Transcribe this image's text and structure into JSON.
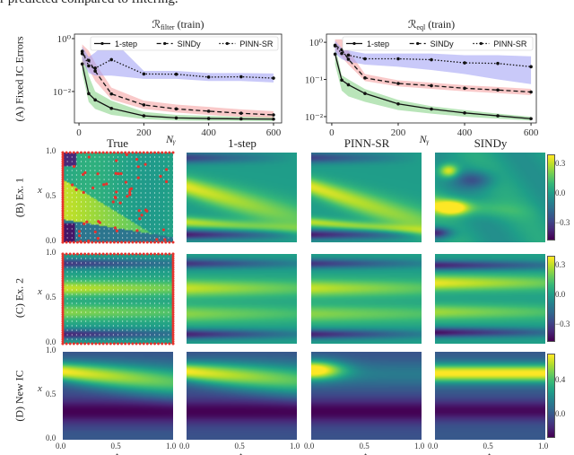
{
  "caption": "r predicted compared to filtering.",
  "row_labels": {
    "A": "(A) Fixed IC Errors",
    "B": "(B) Ex. 1",
    "C": "(C) Ex. 2",
    "D": "(D) New IC"
  },
  "column_titles": [
    "True",
    "1-step",
    "PINN-SR",
    "SINDy"
  ],
  "heatmap_axes": {
    "xlabel": "t",
    "ylabel": "x",
    "xticks": [
      "0.0",
      "0.5",
      "1.0"
    ],
    "yticks": [
      "0.0",
      "0.5",
      "1.0"
    ]
  },
  "colorbars": [
    {
      "row": "B",
      "ticks": [
        "0.3",
        "0.0",
        "−0.3"
      ],
      "range": [
        -0.45,
        0.4
      ]
    },
    {
      "row": "C",
      "ticks": [
        "0.3",
        "0.0",
        "−0.3"
      ],
      "range": [
        -0.45,
        0.4
      ]
    },
    {
      "row": "D",
      "ticks": [
        "0.4",
        "0.0"
      ],
      "range": [
        -0.25,
        0.72
      ]
    }
  ],
  "colors": {
    "one_step_band": "#7fcf7f",
    "sindy_band": "#f49c9c",
    "pinn_band": "#9c9cf4",
    "sensor_points": "#e8322c"
  },
  "chart_data": [
    {
      "type": "line",
      "title": "ℛfilter (train)",
      "title_main": "ℛ",
      "title_sub": "filter",
      "title_tail": " (train)",
      "xlabel": "Nᵧ",
      "ylabel": "(A) Fixed IC Errors",
      "yscale": "log",
      "xlim": [
        -14,
        625
      ],
      "ylog_lim": [
        -3.19,
        0.17
      ],
      "xticks": [
        "0",
        "200",
        "400",
        "600"
      ],
      "yticks": [
        "10⁰",
        "10⁻²"
      ],
      "ytick_values": [
        1,
        0.01
      ],
      "legend": "top-right",
      "x": [
        10,
        30,
        50,
        100,
        200,
        300,
        400,
        500,
        600
      ],
      "series": [
        {
          "name": "1-step",
          "style": "solid",
          "values": [
            0.11,
            0.0083,
            0.0048,
            0.0023,
            0.0012,
            0.001,
            0.00095,
            0.00092,
            0.0009
          ],
          "lower": [
            0.05,
            0.004,
            0.0022,
            0.0013,
            0.0009,
            0.0008,
            0.00078,
            0.00077,
            0.00076
          ],
          "upper": [
            0.5,
            0.04,
            0.01,
            0.0045,
            0.0017,
            0.0013,
            0.0012,
            0.0011,
            0.0011
          ]
        },
        {
          "name": "SINDy",
          "style": "dashed",
          "values": [
            0.27,
            0.15,
            0.059,
            0.0081,
            0.0031,
            0.0022,
            0.0018,
            0.0015,
            0.0013
          ],
          "lower": [
            0.12,
            0.07,
            0.025,
            0.005,
            0.0022,
            0.0016,
            0.0013,
            0.0011,
            0.001
          ],
          "upper": [
            0.6,
            0.35,
            0.12,
            0.014,
            0.0045,
            0.0032,
            0.0026,
            0.0021,
            0.0018
          ]
        },
        {
          "name": "PINN-SR",
          "style": "dotted",
          "values": [
            0.33,
            0.093,
            0.076,
            0.16,
            0.046,
            0.045,
            0.035,
            0.036,
            0.032
          ],
          "lower": [
            0.15,
            0.05,
            0.04,
            0.04,
            0.03,
            0.03,
            0.025,
            0.025,
            0.022
          ],
          "upper": [
            0.5,
            0.2,
            0.3,
            1.0,
            0.06,
            0.06,
            0.05,
            0.05,
            0.048
          ]
        }
      ]
    },
    {
      "type": "line",
      "title": "ℛeql (train)",
      "title_main": "ℛ",
      "title_sub": "eql",
      "title_tail": " (train)",
      "xlabel": "Nᵧ",
      "ylabel": "",
      "yscale": "log",
      "xlim": [
        -16,
        616
      ],
      "ylog_lim": [
        -2.17,
        0.22
      ],
      "xticks": [
        "0",
        "200",
        "400",
        "600"
      ],
      "yticks": [
        "10⁰",
        "10⁻¹",
        "10⁻²"
      ],
      "ytick_values": [
        1,
        0.1,
        0.01
      ],
      "legend": "top-right",
      "x": [
        10,
        30,
        50,
        100,
        200,
        300,
        400,
        500,
        600
      ],
      "series": [
        {
          "name": "1-step",
          "style": "solid",
          "values": [
            0.48,
            0.096,
            0.072,
            0.042,
            0.022,
            0.016,
            0.0126,
            0.0105,
            0.0088
          ],
          "lower": [
            0.25,
            0.05,
            0.035,
            0.025,
            0.015,
            0.012,
            0.01,
            0.0088,
            0.0078
          ],
          "upper": [
            0.8,
            0.13,
            0.1,
            0.055,
            0.028,
            0.019,
            0.015,
            0.012,
            0.01
          ]
        },
        {
          "name": "SINDy",
          "style": "dashed",
          "values": [
            0.83,
            0.63,
            0.35,
            0.11,
            0.078,
            0.068,
            0.058,
            0.052,
            0.046
          ],
          "lower": [
            0.6,
            0.4,
            0.25,
            0.09,
            0.065,
            0.056,
            0.048,
            0.043,
            0.038
          ],
          "upper": [
            1.2,
            1.2,
            0.6,
            0.14,
            0.095,
            0.082,
            0.07,
            0.063,
            0.056
          ]
        },
        {
          "name": "PINN-SR",
          "style": "dotted",
          "values": [
            0.8,
            0.5,
            0.45,
            0.36,
            0.36,
            0.34,
            0.28,
            0.27,
            0.22
          ],
          "lower": [
            0.5,
            0.35,
            0.3,
            0.25,
            0.22,
            0.18,
            0.14,
            0.1,
            0.075
          ],
          "upper": [
            1.1,
            0.7,
            0.6,
            0.5,
            0.5,
            0.5,
            0.45,
            0.45,
            0.42
          ]
        }
      ]
    },
    {
      "type": "heatmap",
      "rows": [
        "(B) Ex. 1",
        "(C) Ex. 2",
        "(D) New IC"
      ],
      "columns": [
        "True",
        "1-step",
        "PINN-SR",
        "SINDy"
      ],
      "colormap": "viridis"
    }
  ]
}
